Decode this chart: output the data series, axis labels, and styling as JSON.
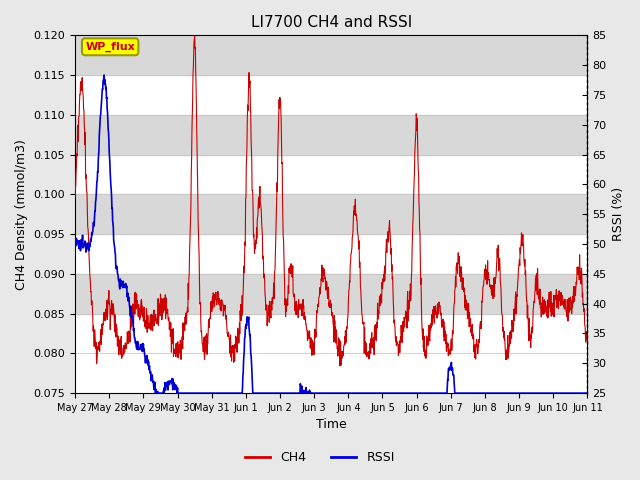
{
  "title": "LI7700 CH4 and RSSI",
  "xlabel": "Time",
  "ylabel_left": "CH4 Density (mmol/m3)",
  "ylabel_right": "RSSI (%)",
  "ylim_left": [
    0.075,
    0.12
  ],
  "ylim_right": [
    25,
    85
  ],
  "yticks_left": [
    0.075,
    0.08,
    0.085,
    0.09,
    0.095,
    0.1,
    0.105,
    0.11,
    0.115,
    0.12
  ],
  "yticks_right": [
    25,
    30,
    35,
    40,
    45,
    50,
    55,
    60,
    65,
    70,
    75,
    80,
    85
  ],
  "xtick_labels": [
    "May 27",
    "May 28",
    "May 29",
    "May 30",
    "May 31",
    "Jun 1",
    "Jun 2",
    "Jun 3",
    "Jun 4",
    "Jun 5",
    "Jun 6",
    "Jun 7",
    "Jun 8",
    "Jun 9",
    "Jun 10",
    "Jun 11"
  ],
  "annotation_text": "WP_flux",
  "annotation_color": "#cc0000",
  "annotation_bg": "#ffff00",
  "ch4_color": "#cc0000",
  "rssi_color": "#0000cc",
  "background_color": "#e8e8e8",
  "plot_bg_color": "#ffffff",
  "grid_color": "#d0d0d0",
  "shading_color": "#d8d8d8",
  "title_fontsize": 11,
  "shading_bands": [
    [
      0.085,
      0.115
    ]
  ]
}
